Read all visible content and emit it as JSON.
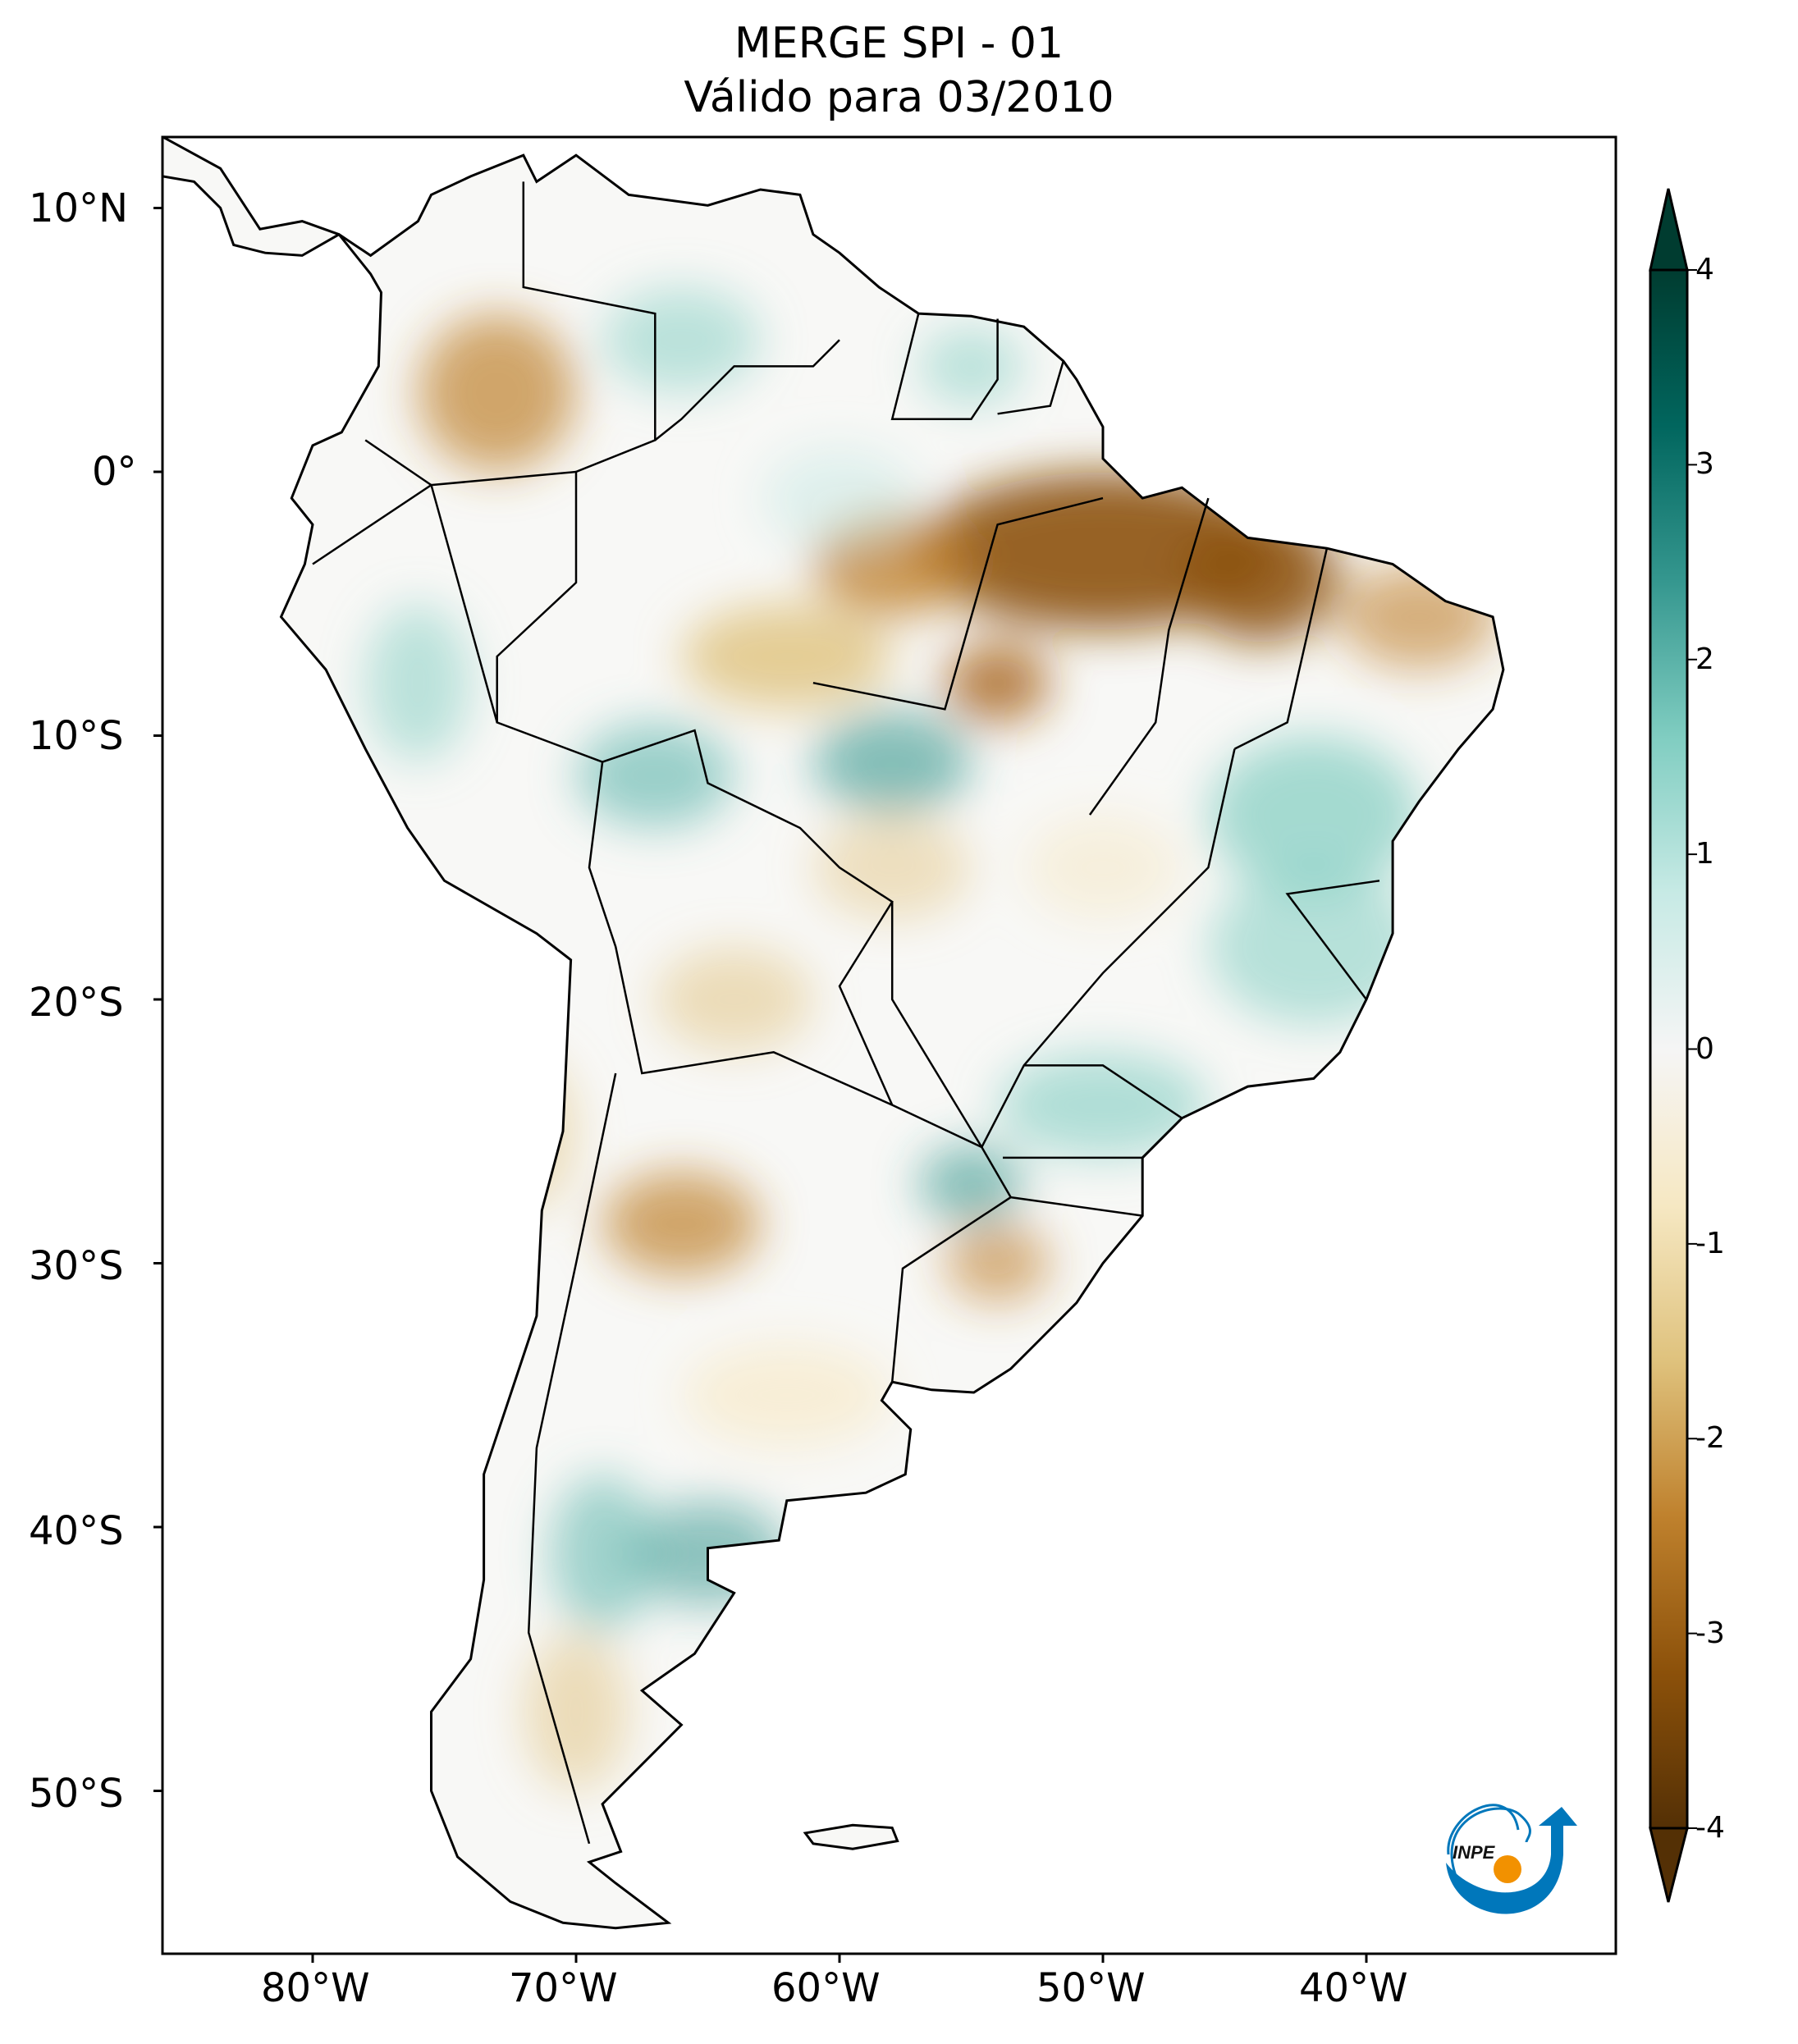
{
  "title": {
    "line1": "MERGE   SPI - 01",
    "line2": "Válido para 03/2010"
  },
  "map": {
    "variable": "SPI - 01",
    "region": "South America",
    "lon_ticks": [
      "80°W",
      "70°W",
      "60°W",
      "50°W",
      "40°W"
    ],
    "lat_ticks": [
      "10°N",
      "0°",
      "10°S",
      "20°S",
      "30°S",
      "40°S",
      "50°S"
    ],
    "lon_range": [
      -85.7,
      -30.5
    ],
    "lat_range": [
      -56.1,
      12.7
    ]
  },
  "colorbar": {
    "ticks": [
      "4",
      "3",
      "2",
      "1",
      "0",
      "-1",
      "-2",
      "-3",
      "-4"
    ],
    "range": [
      -4,
      4
    ],
    "extend": "both",
    "colormap": "BrBG",
    "colors": [
      "#543005",
      "#8c510a",
      "#bf812d",
      "#dfc27d",
      "#f6e8c3",
      "#f5f5f5",
      "#c7eae5",
      "#80cdc1",
      "#35978f",
      "#01665e",
      "#003c30"
    ]
  },
  "logo": {
    "text": "INPE",
    "blue": "#0077bb",
    "orange": "#f29100"
  }
}
